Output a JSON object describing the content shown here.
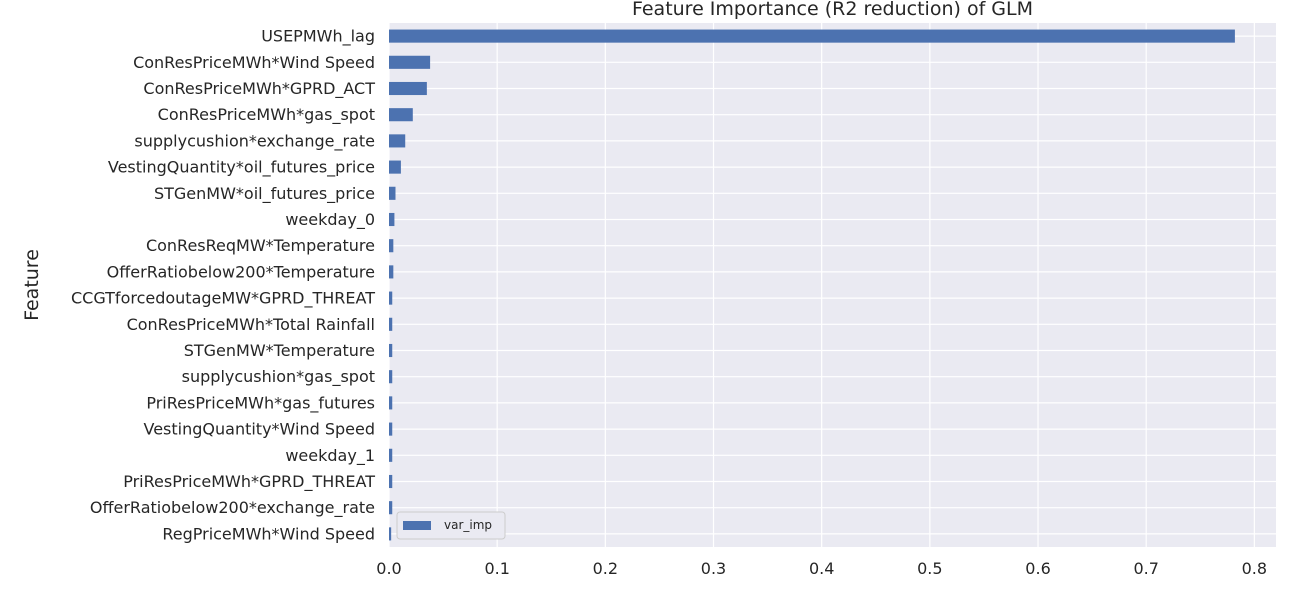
{
  "chart_data": {
    "type": "bar",
    "orientation": "horizontal",
    "title": "Feature Importance (R2 reduction) of GLM",
    "xlabel": "",
    "ylabel": "Feature",
    "xlim": [
      0,
      0.82
    ],
    "xticks": [
      0.0,
      0.1,
      0.2,
      0.3,
      0.4,
      0.5,
      0.6,
      0.7,
      0.8
    ],
    "xtick_labels": [
      "0.0",
      "0.1",
      "0.2",
      "0.3",
      "0.4",
      "0.5",
      "0.6",
      "0.7",
      "0.8"
    ],
    "grid": true,
    "legend_position": "lower-left",
    "series": [
      {
        "name": "var_imp",
        "color": "#4c72b0",
        "values": [
          0.782,
          0.038,
          0.035,
          0.022,
          0.015,
          0.011,
          0.006,
          0.005,
          0.004,
          0.004,
          0.003,
          0.003,
          0.003,
          0.003,
          0.003,
          0.003,
          0.003,
          0.003,
          0.003,
          0.002
        ]
      }
    ],
    "categories": [
      "USEPMWh_lag",
      "ConResPriceMWh*Wind Speed",
      "ConResPriceMWh*GPRD_ACT",
      "ConResPriceMWh*gas_spot",
      "supplycushion*exchange_rate",
      "VestingQuantity*oil_futures_price",
      "STGenMW*oil_futures_price",
      "weekday_0",
      "ConResReqMW*Temperature",
      "OfferRatiobelow200*Temperature",
      "CCGTforcedoutageMW*GPRD_THREAT",
      "ConResPriceMWh*Total Rainfall",
      "STGenMW*Temperature",
      "supplycushion*gas_spot",
      "PriResPriceMWh*gas_futures",
      "VestingQuantity*Wind Speed",
      "weekday_1",
      "PriResPriceMWh*GPRD_THREAT",
      "OfferRatiobelow200*exchange_rate",
      "RegPriceMWh*Wind Speed"
    ],
    "background_color": "#eaeaf2",
    "grid_color": "#ffffff"
  }
}
